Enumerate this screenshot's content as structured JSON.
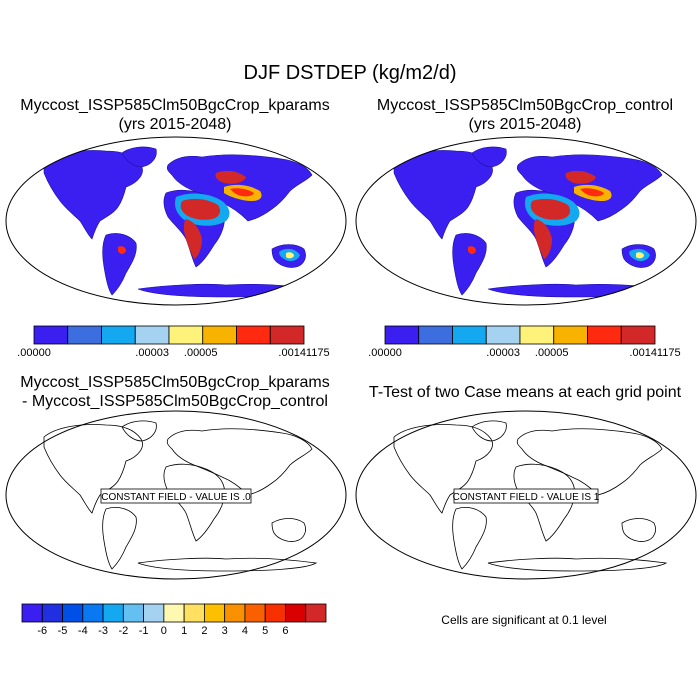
{
  "title": "DJF DSTDEP (kg/m2/d)",
  "panels": [
    {
      "title_line1": "Myccost_ISSP585Clm50BgcCrop_kparams",
      "title_line2": "(yrs 2015-2048)"
    },
    {
      "title_line1": "Myccost_ISSP585Clm50BgcCrop_control",
      "title_line2": "(yrs 2015-2048)"
    },
    {
      "title_line1": "Myccost_ISSP585Clm50BgcCrop_kparams",
      "title_line2": "- Myccost_ISSP585Clm50BgcCrop_control",
      "field_label": "CONSTANT FIELD - VALUE IS .0"
    },
    {
      "title_line1": "T-Test of two Case means at each grid point",
      "field_label": "CONSTANT FIELD - VALUE IS 1"
    }
  ],
  "colorbar_top": {
    "colors": [
      "#3a1ff0",
      "#3d6ee0",
      "#14a8f0",
      "#a5d2f0",
      "#fff27a",
      "#f8b200",
      "#ff2a10",
      "#d22828"
    ],
    "labels": [
      ".00000",
      ".00003",
      ".00005",
      ".00141175"
    ]
  },
  "colorbar_diff": {
    "colors": [
      "#3a1ff0",
      "#2030e0",
      "#0050e8",
      "#0a78f0",
      "#14a8f0",
      "#64c0f0",
      "#a5d2f0",
      "#fff8b0",
      "#ffe060",
      "#fcc000",
      "#f89000",
      "#f86000",
      "#f83000",
      "#d80000",
      "#d22828"
    ],
    "labels": [
      "-6",
      "-5",
      "-4",
      "-3",
      "-2",
      "-1",
      "0",
      "1",
      "2",
      "3",
      "4",
      "5",
      "6"
    ]
  },
  "note": "Cells are significant at 0.1 level",
  "map_colors": {
    "ocean": "#ffffff",
    "land_low": "#3a1ff0",
    "dust_mid": "#14a8f0",
    "dust_high": "#d22828",
    "dust_peak": "#ff2a10",
    "coast_outline": "#000000"
  }
}
